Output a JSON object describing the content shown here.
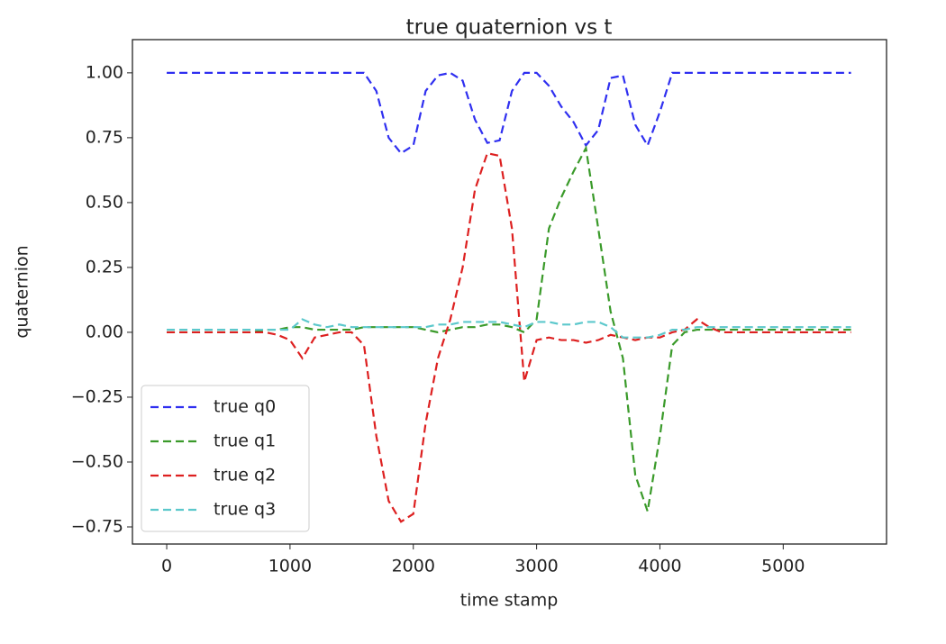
{
  "chart_data": {
    "type": "line",
    "title": "true quaternion vs t",
    "x_label": "time stamp",
    "y_label": "quaternion",
    "x": [
      0,
      100,
      200,
      300,
      400,
      500,
      600,
      700,
      800,
      900,
      1000,
      1100,
      1200,
      1300,
      1400,
      1500,
      1600,
      1700,
      1800,
      1900,
      2000,
      2100,
      2200,
      2300,
      2400,
      2500,
      2600,
      2700,
      2800,
      2900,
      3000,
      3100,
      3200,
      3300,
      3400,
      3500,
      3600,
      3700,
      3800,
      3900,
      4000,
      4100,
      4200,
      4300,
      4400,
      4500,
      4600,
      4700,
      4800,
      4900,
      5000,
      5100,
      5200,
      5300,
      5400,
      5500,
      5550
    ],
    "series": [
      {
        "name": "true q0",
        "color": "#2f2ff0",
        "values": [
          1.0,
          1.0,
          1.0,
          1.0,
          1.0,
          1.0,
          1.0,
          1.0,
          1.0,
          1.0,
          1.0,
          1.0,
          1.0,
          1.0,
          1.0,
          1.0,
          1.0,
          0.93,
          0.75,
          0.69,
          0.72,
          0.93,
          0.99,
          1.0,
          0.97,
          0.82,
          0.73,
          0.74,
          0.93,
          1.0,
          1.0,
          0.95,
          0.87,
          0.81,
          0.72,
          0.78,
          0.98,
          0.99,
          0.8,
          0.72,
          0.85,
          1.0,
          1.0,
          1.0,
          1.0,
          1.0,
          1.0,
          1.0,
          1.0,
          1.0,
          1.0,
          1.0,
          1.0,
          1.0,
          1.0,
          1.0,
          1.0
        ]
      },
      {
        "name": "true q1",
        "color": "#3a9a2a",
        "values": [
          0,
          0,
          0,
          0,
          0,
          0,
          0,
          0,
          0.01,
          0.01,
          0.02,
          0.02,
          0.01,
          0.01,
          0.01,
          0.01,
          0.02,
          0.02,
          0.02,
          0.02,
          0.02,
          0.01,
          0.0,
          0.01,
          0.02,
          0.02,
          0.03,
          0.03,
          0.02,
          0.0,
          0.05,
          0.4,
          0.52,
          0.62,
          0.71,
          0.4,
          0.08,
          -0.1,
          -0.55,
          -0.69,
          -0.4,
          -0.05,
          0.0,
          0.01,
          0.01,
          0.01,
          0.01,
          0.01,
          0.01,
          0.01,
          0.01,
          0.01,
          0.01,
          0.01,
          0.01,
          0.01,
          0.01
        ]
      },
      {
        "name": "true q2",
        "color": "#dd2020",
        "values": [
          0,
          0,
          0,
          0,
          0,
          0,
          0,
          0,
          0,
          -0.01,
          -0.03,
          -0.1,
          -0.02,
          -0.01,
          0.0,
          0.0,
          -0.05,
          -0.4,
          -0.65,
          -0.73,
          -0.7,
          -0.35,
          -0.1,
          0.05,
          0.25,
          0.55,
          0.69,
          0.68,
          0.4,
          -0.19,
          -0.03,
          -0.02,
          -0.03,
          -0.03,
          -0.04,
          -0.03,
          -0.01,
          -0.02,
          -0.03,
          -0.02,
          -0.02,
          0.0,
          0.01,
          0.05,
          0.02,
          0,
          0,
          0,
          0,
          0,
          0,
          0,
          0,
          0,
          0,
          0,
          0
        ]
      },
      {
        "name": "true q3",
        "color": "#5cc8cc",
        "values": [
          0.01,
          0.01,
          0.01,
          0.01,
          0.01,
          0.01,
          0.01,
          0.01,
          0.01,
          0.01,
          0.01,
          0.05,
          0.03,
          0.02,
          0.03,
          0.02,
          0.02,
          0.02,
          0.02,
          0.02,
          0.02,
          0.02,
          0.03,
          0.03,
          0.04,
          0.04,
          0.04,
          0.04,
          0.03,
          0.02,
          0.04,
          0.04,
          0.03,
          0.03,
          0.04,
          0.04,
          0.02,
          -0.02,
          -0.02,
          -0.02,
          -0.01,
          0.01,
          0.01,
          0.02,
          0.02,
          0.02,
          0.02,
          0.02,
          0.02,
          0.02,
          0.02,
          0.02,
          0.02,
          0.02,
          0.02,
          0.02,
          0.02
        ]
      }
    ],
    "xlim": [
      -278,
      5838
    ],
    "xticks": [
      0,
      1000,
      2000,
      3000,
      4000,
      5000
    ],
    "ylim": [
      -0.816,
      1.128
    ],
    "yticks": [
      {
        "value": -0.75,
        "label": "−0.75"
      },
      {
        "value": -0.5,
        "label": "−0.50"
      },
      {
        "value": -0.25,
        "label": "−0.25"
      },
      {
        "value": 0,
        "label": "0.00"
      },
      {
        "value": 0.25,
        "label": "0.25"
      },
      {
        "value": 0.5,
        "label": "0.50"
      },
      {
        "value": 0.75,
        "label": "0.75"
      },
      {
        "value": 1.0,
        "label": "1.00"
      }
    ],
    "legend": "lower left",
    "line_style": "dashed"
  }
}
